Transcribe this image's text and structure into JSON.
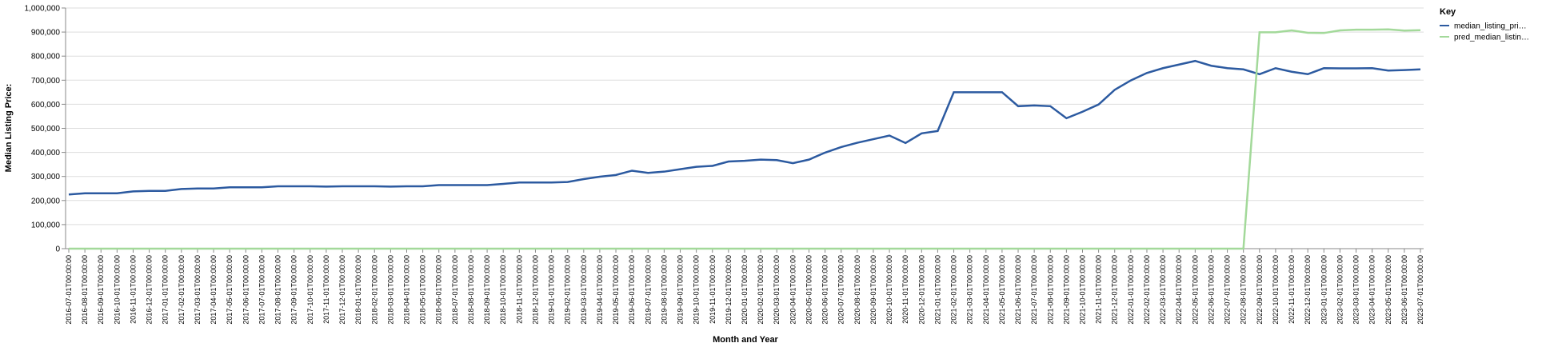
{
  "chart_data": {
    "type": "line",
    "x_label": "Month and Year",
    "y_label": "Median Listing Price:",
    "legend_title": "Key",
    "categories": [
      "2016-07-01T00:00:00",
      "2016-08-01T00:00:00",
      "2016-09-01T00:00:00",
      "2016-10-01T00:00:00",
      "2016-11-01T00:00:00",
      "2016-12-01T00:00:00",
      "2017-01-01T00:00:00",
      "2017-02-01T00:00:00",
      "2017-03-01T00:00:00",
      "2017-04-01T00:00:00",
      "2017-05-01T00:00:00",
      "2017-06-01T00:00:00",
      "2017-07-01T00:00:00",
      "2017-08-01T00:00:00",
      "2017-09-01T00:00:00",
      "2017-10-01T00:00:00",
      "2017-11-01T00:00:00",
      "2017-12-01T00:00:00",
      "2018-01-01T00:00:00",
      "2018-02-01T00:00:00",
      "2018-03-01T00:00:00",
      "2018-04-01T00:00:00",
      "2018-05-01T00:00:00",
      "2018-06-01T00:00:00",
      "2018-07-01T00:00:00",
      "2018-08-01T00:00:00",
      "2018-09-01T00:00:00",
      "2018-10-01T00:00:00",
      "2018-11-01T00:00:00",
      "2018-12-01T00:00:00",
      "2019-01-01T00:00:00",
      "2019-02-01T00:00:00",
      "2019-03-01T00:00:00",
      "2019-04-01T00:00:00",
      "2019-05-01T00:00:00",
      "2019-06-01T00:00:00",
      "2019-07-01T00:00:00",
      "2019-08-01T00:00:00",
      "2019-09-01T00:00:00",
      "2019-10-01T00:00:00",
      "2019-11-01T00:00:00",
      "2019-12-01T00:00:00",
      "2020-01-01T00:00:00",
      "2020-02-01T00:00:00",
      "2020-03-01T00:00:00",
      "2020-04-01T00:00:00",
      "2020-05-01T00:00:00",
      "2020-06-01T00:00:00",
      "2020-07-01T00:00:00",
      "2020-08-01T00:00:00",
      "2020-09-01T00:00:00",
      "2020-10-01T00:00:00",
      "2020-11-01T00:00:00",
      "2020-12-01T00:00:00",
      "2021-01-01T00:00:00",
      "2021-02-01T00:00:00",
      "2021-03-01T00:00:00",
      "2021-04-01T00:00:00",
      "2021-05-01T00:00:00",
      "2021-06-01T00:00:00",
      "2021-07-01T00:00:00",
      "2021-08-01T00:00:00",
      "2021-09-01T00:00:00",
      "2021-10-01T00:00:00",
      "2021-11-01T00:00:00",
      "2021-12-01T00:00:00",
      "2022-01-01T00:00:00",
      "2022-02-01T00:00:00",
      "2022-03-01T00:00:00",
      "2022-04-01T00:00:00",
      "2022-05-01T00:00:00",
      "2022-06-01T00:00:00",
      "2022-07-01T00:00:00",
      "2022-08-01T00:00:00",
      "2022-09-01T00:00:00",
      "2022-10-01T00:00:00",
      "2022-11-01T00:00:00",
      "2022-12-01T00:00:00",
      "2023-01-01T00:00:00",
      "2023-02-01T00:00:00",
      "2023-03-01T00:00:00",
      "2023-04-01T00:00:00",
      "2023-05-01T00:00:00",
      "2023-06-01T00:00:00",
      "2023-07-01T00:00:00"
    ],
    "series": [
      {
        "name": "median_listing_pri…",
        "color": "#2c5aa0",
        "values": [
          225000,
          230000,
          230000,
          230000,
          238000,
          240000,
          240000,
          248000,
          250000,
          250000,
          255000,
          255000,
          255000,
          259000,
          259000,
          259000,
          258000,
          259000,
          259000,
          259000,
          258000,
          259000,
          259000,
          264000,
          264000,
          264000,
          264000,
          269000,
          275000,
          275000,
          275000,
          277000,
          289000,
          299000,
          306000,
          324000,
          315000,
          320000,
          330000,
          340000,
          344000,
          362000,
          365000,
          370000,
          368000,
          355000,
          370000,
          399000,
          422000,
          440000,
          455000,
          470000,
          439000,
          479000,
          489000,
          650000,
          650000,
          650000,
          650000,
          592000,
          595000,
          592000,
          542000,
          569000,
          599000,
          660000,
          699000,
          730000,
          750000,
          765000,
          780000,
          760000,
          750000,
          745000,
          725000,
          750000,
          735000,
          725000,
          750000,
          749000,
          749000,
          750000,
          740000,
          742000,
          745000
        ]
      },
      {
        "name": "pred_median_listin…",
        "color": "#a3d99a",
        "values": [
          0,
          0,
          0,
          0,
          0,
          0,
          0,
          0,
          0,
          0,
          0,
          0,
          0,
          0,
          0,
          0,
          0,
          0,
          0,
          0,
          0,
          0,
          0,
          0,
          0,
          0,
          0,
          0,
          0,
          0,
          0,
          0,
          0,
          0,
          0,
          0,
          0,
          0,
          0,
          0,
          0,
          0,
          0,
          0,
          0,
          0,
          0,
          0,
          0,
          0,
          0,
          0,
          0,
          0,
          0,
          0,
          0,
          0,
          0,
          0,
          0,
          0,
          0,
          0,
          0,
          0,
          0,
          0,
          0,
          0,
          0,
          0,
          0,
          0,
          899000,
          899000,
          907000,
          897000,
          896000,
          907000,
          910000,
          910000,
          911000,
          906000,
          908000
        ]
      }
    ],
    "ylim": [
      0,
      1000000
    ],
    "yticks": [
      0,
      {
        "value": 100000,
        "label": "100,000"
      },
      {
        "value": 200000,
        "label": "200,000"
      },
      {
        "value": 300000,
        "label": "300,000"
      },
      {
        "value": 400000,
        "label": "400,000"
      },
      {
        "value": 500000,
        "label": "500,000"
      },
      {
        "value": 600000,
        "label": "600,000"
      },
      {
        "value": 700000,
        "label": "700,000"
      },
      {
        "value": 800000,
        "label": "800,000"
      },
      {
        "value": 900000,
        "label": "900,000"
      },
      {
        "value": 1000000,
        "label": "1,000,000"
      }
    ],
    "grid": true
  }
}
